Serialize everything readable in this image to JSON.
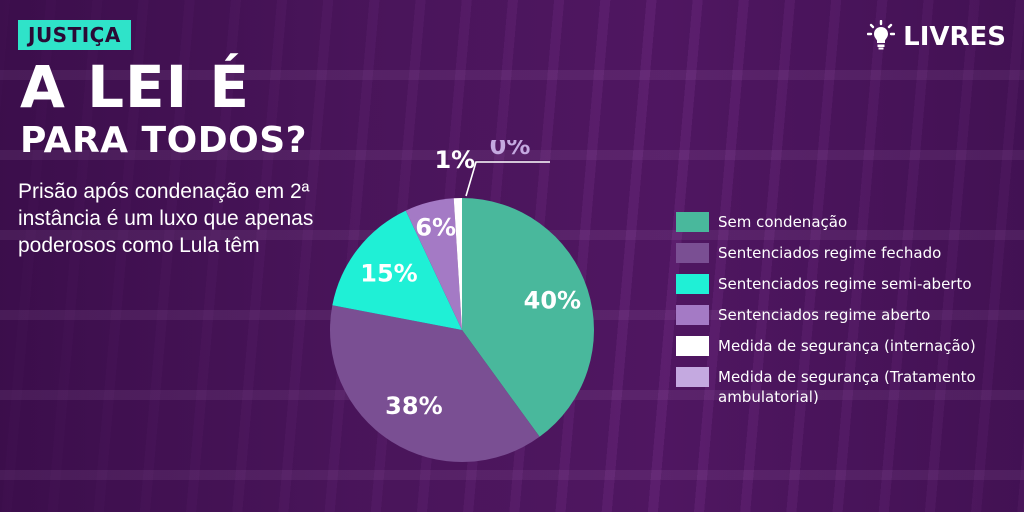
{
  "header": {
    "tag": "JUSTIÇA",
    "title_line1": "A LEI É",
    "title_line2": "PARA TODOS?",
    "subtitle": "Prisão após condenação em 2ª instância é um luxo que apenas poderosos como Lula têm"
  },
  "brand": {
    "name": "LIVRES",
    "icon": "lightbulb-icon"
  },
  "colors": {
    "accent": "#2fe3c9",
    "background": "#4a1660"
  },
  "chart_data": {
    "type": "pie",
    "title": "",
    "slices": [
      {
        "label": "Sem condenação",
        "value": 40,
        "display": "40%",
        "color": "#49b89c"
      },
      {
        "label": "Sentenciados regime fechado",
        "value": 38,
        "display": "38%",
        "color": "#7a4f93"
      },
      {
        "label": "Sentenciados regime semi-aberto",
        "value": 15,
        "display": "15%",
        "color": "#1ff0d6"
      },
      {
        "label": "Sentenciados regime aberto",
        "value": 6,
        "display": "6%",
        "color": "#a47ac5"
      },
      {
        "label": "Medida de segurança (internação)",
        "value": 1,
        "display": "1%",
        "color": "#ffffff"
      },
      {
        "label": "Medida de segurança (Tratamento ambulatorial)",
        "value": 0,
        "display": "0%",
        "color": "#c4a9e0"
      }
    ],
    "legend_position": "right",
    "start_angle_deg": 0,
    "direction": "clockwise"
  }
}
